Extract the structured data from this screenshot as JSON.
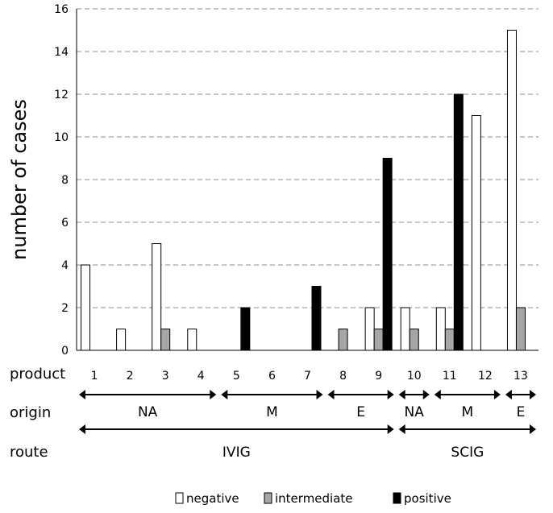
{
  "chart_data": {
    "type": "bar",
    "ylabel": "number of cases",
    "ylim": [
      0,
      16
    ],
    "yticks": [
      0,
      2,
      4,
      6,
      8,
      10,
      12,
      14,
      16
    ],
    "grid": true,
    "legend_position": "bottom",
    "x_row_label": "product",
    "categories": [
      "1",
      "2",
      "3",
      "4",
      "5",
      "6",
      "7",
      "8",
      "9",
      "10",
      "11",
      "12",
      "13"
    ],
    "series": [
      {
        "name": "negative",
        "color": "#ffffff",
        "values": [
          4,
          1,
          5,
          1,
          0,
          0,
          0,
          0,
          2,
          2,
          2,
          11,
          15
        ]
      },
      {
        "name": "intermediate",
        "color": "#a6a6a6",
        "values": [
          0,
          0,
          1,
          0,
          0,
          0,
          0,
          1,
          1,
          1,
          1,
          0,
          2
        ]
      },
      {
        "name": "positive",
        "color": "#000000",
        "values": [
          0,
          0,
          0,
          0,
          2,
          0,
          3,
          0,
          9,
          0,
          12,
          0,
          0
        ]
      }
    ],
    "origin": {
      "label": "origin",
      "groups": [
        {
          "label": "NA",
          "from": 1,
          "to": 4
        },
        {
          "label": "M",
          "from": 5,
          "to": 7
        },
        {
          "label": "E",
          "from": 8,
          "to": 9
        },
        {
          "label": "NA",
          "from": 10,
          "to": 10
        },
        {
          "label": "M",
          "from": 11,
          "to": 12
        },
        {
          "label": "E",
          "from": 13,
          "to": 13
        }
      ]
    },
    "route": {
      "label": "route",
      "groups": [
        {
          "label": "IVIG",
          "from": 1,
          "to": 9
        },
        {
          "label": "SCIG",
          "from": 10,
          "to": 13
        }
      ]
    }
  }
}
